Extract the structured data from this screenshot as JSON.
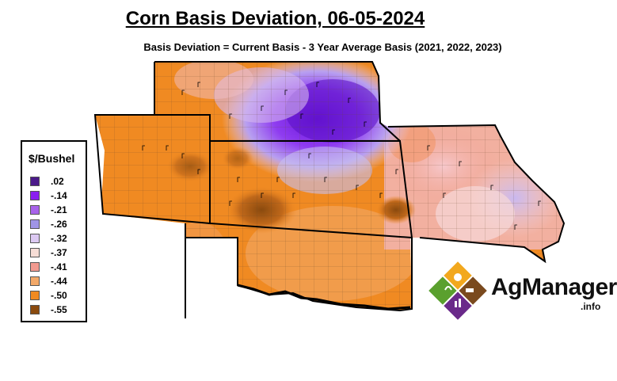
{
  "title": "Corn Basis Deviation, 06-05-2024",
  "subtitle": "Basis Deviation = Current Basis - 3 Year Average Basis (2021, 2022, 2023)",
  "legend": {
    "title": "$/Bushel",
    "items": [
      {
        "label": ".02",
        "color": "#4b1a8a"
      },
      {
        "label": "-.14",
        "color": "#8a1ef0"
      },
      {
        "label": "-.21",
        "color": "#a863ea"
      },
      {
        "label": "-.26",
        "color": "#9f95e6"
      },
      {
        "label": "-.32",
        "color": "#dcc9f2"
      },
      {
        "label": "-.37",
        "color": "#f6ddd6"
      },
      {
        "label": "-.41",
        "color": "#f29a90"
      },
      {
        "label": "-.44",
        "color": "#f2a868"
      },
      {
        "label": "-.50",
        "color": "#f08a22"
      },
      {
        "label": "-.55",
        "color": "#8a4a0e"
      }
    ]
  },
  "logo": {
    "text": "AgManager",
    "sub": ".info"
  }
}
